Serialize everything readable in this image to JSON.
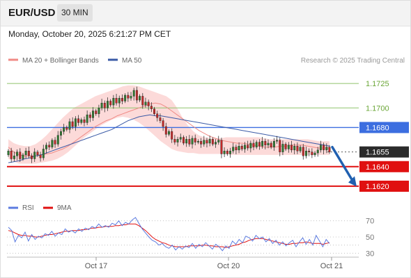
{
  "header": {
    "symbol": "EUR/USD",
    "timeframe": "30 MIN",
    "datetime": "Monday, October 20, 2025 6:21:27 PM CET",
    "credit": "Research © 2025 Trading Central"
  },
  "colors": {
    "bollinger_fill": "#fbd4d2",
    "ma20": "#f08a85",
    "ma50": "#3a5aa6",
    "resistance": "#8fc36b",
    "pivot": "#3c6ee0",
    "support": "#e01010",
    "bull_candle": "#2e7d32",
    "bear_candle": "#c62828",
    "arrow": "#2060b0",
    "rsi": "#5b7be0",
    "rsi_ma": "#e01010"
  },
  "chart_data": [
    {
      "type": "candlestick",
      "title": "EUR/USD 30 MIN",
      "legend": [
        {
          "name": "MA 20 + Bollinger Bands",
          "color": "#f08a85"
        },
        {
          "name": "MA 50",
          "color": "#3a5aa6"
        }
      ],
      "legend_position": "top-left",
      "ylim": [
        1.161,
        1.174
      ],
      "x_ticks": [
        "Oct 17",
        "Oct 20",
        "Oct 21"
      ],
      "levels": [
        {
          "value": 1.1725,
          "label": "1.1725",
          "kind": "resistance"
        },
        {
          "value": 1.17,
          "label": "1.1700",
          "kind": "resistance"
        },
        {
          "value": 1.168,
          "label": "1.1680",
          "kind": "pivot"
        },
        {
          "value": 1.1655,
          "label": "1.1655",
          "kind": "last"
        },
        {
          "value": 1.164,
          "label": "1.1640",
          "kind": "support"
        },
        {
          "value": 1.162,
          "label": "1.1620",
          "kind": "support"
        }
      ],
      "close": [
        1.1656,
        1.1648,
        1.1651,
        1.1655,
        1.1648,
        1.1652,
        1.1656,
        1.1651,
        1.1648,
        1.1655,
        1.1652,
        1.1649,
        1.1658,
        1.1662,
        1.166,
        1.1667,
        1.1663,
        1.1672,
        1.1676,
        1.168,
        1.1678,
        1.1686,
        1.1681,
        1.1689,
        1.1685,
        1.1688,
        1.1685,
        1.1693,
        1.169,
        1.1697,
        1.1694,
        1.17,
        1.1705,
        1.17,
        1.1707,
        1.1703,
        1.171,
        1.1705,
        1.171,
        1.1707,
        1.1713,
        1.171,
        1.1712,
        1.1718,
        1.1708,
        1.1712,
        1.1703,
        1.1706,
        1.1702,
        1.1699,
        1.1694,
        1.169,
        1.1687,
        1.1681,
        1.1673,
        1.1676,
        1.1668,
        1.1665,
        1.1668,
        1.167,
        1.1664,
        1.1668,
        1.1663,
        1.1669,
        1.1665,
        1.1666,
        1.1663,
        1.1667,
        1.1664,
        1.1668,
        1.1663,
        1.1665,
        1.1667,
        1.1653,
        1.1656,
        1.1653,
        1.1656,
        1.166,
        1.1657,
        1.1661,
        1.1658,
        1.1662,
        1.1659,
        1.1664,
        1.166,
        1.1665,
        1.1661,
        1.1666,
        1.1662,
        1.1664,
        1.166,
        1.1666,
        1.1667,
        1.1655,
        1.1663,
        1.1658,
        1.1662,
        1.1657,
        1.1661,
        1.1656,
        1.166,
        1.1651,
        1.1656,
        1.1655,
        1.1652,
        1.1654,
        1.1657,
        1.1662,
        1.1657,
        1.166,
        1.1655
      ],
      "ma20": [
        1.166,
        1.1655,
        1.1652,
        1.1651,
        1.1651,
        1.1651,
        1.1652,
        1.1653,
        1.1654,
        1.1656,
        1.1658,
        1.1661,
        1.1665,
        1.1669,
        1.1673,
        1.1677,
        1.1681,
        1.1684,
        1.1687,
        1.1689,
        1.1692,
        1.1694,
        1.1696,
        1.1698,
        1.17,
        1.1702,
        1.1704,
        1.1705,
        1.1704,
        1.1701,
        1.1697,
        1.1693,
        1.1689,
        1.1685,
        1.1681,
        1.1677,
        1.1674,
        1.1671,
        1.1669,
        1.1667,
        1.1666,
        1.1665,
        1.1664,
        1.1664,
        1.1663,
        1.1662,
        1.1661,
        1.166,
        1.166,
        1.166,
        1.1661,
        1.1661,
        1.1662,
        1.1662,
        1.1662,
        1.1661,
        1.166,
        1.1659,
        1.1659,
        1.1659
      ],
      "bb_upper": [
        1.1668,
        1.1664,
        1.1662,
        1.1661,
        1.1661,
        1.1663,
        1.1667,
        1.1672,
        1.1678,
        1.1684,
        1.169,
        1.1695,
        1.17,
        1.1703,
        1.1706,
        1.1709,
        1.1712,
        1.1714,
        1.1716,
        1.1718,
        1.172,
        1.1722,
        1.1723,
        1.1723,
        1.1722,
        1.172,
        1.1718,
        1.1716,
        1.1714,
        1.1712,
        1.1708,
        1.17,
        1.169,
        1.1682,
        1.1676,
        1.1672,
        1.167,
        1.1669,
        1.1669,
        1.1669,
        1.167,
        1.167,
        1.167,
        1.167,
        1.167,
        1.167,
        1.167,
        1.1669,
        1.1668,
        1.1668,
        1.1668,
        1.1668,
        1.1668,
        1.1668,
        1.1668,
        1.1668,
        1.1667,
        1.1666,
        1.1666,
        1.1666
      ],
      "bb_lower": [
        1.1648,
        1.1645,
        1.1643,
        1.1643,
        1.1643,
        1.1643,
        1.1644,
        1.1645,
        1.1646,
        1.1648,
        1.1651,
        1.1655,
        1.166,
        1.1665,
        1.167,
        1.1674,
        1.1678,
        1.1682,
        1.1685,
        1.1688,
        1.169,
        1.1691,
        1.169,
        1.1688,
        1.1685,
        1.1681,
        1.1676,
        1.1671,
        1.1666,
        1.1662,
        1.1658,
        1.1656,
        1.1655,
        1.1654,
        1.1654,
        1.1653,
        1.1653,
        1.1653,
        1.1653,
        1.1653,
        1.1653,
        1.1652,
        1.1652,
        1.1652,
        1.1652,
        1.1652,
        1.1652,
        1.1652,
        1.1652,
        1.1652,
        1.1652,
        1.1652,
        1.1652,
        1.1652,
        1.1652,
        1.1652,
        1.1652,
        1.1652,
        1.1652,
        1.1652
      ],
      "ma50": [
        1.1644,
        1.1645,
        1.1646,
        1.1648,
        1.1649,
        1.1651,
        1.1652,
        1.1654,
        1.1656,
        1.1658,
        1.166,
        1.1662,
        1.1664,
        1.1666,
        1.1668,
        1.167,
        1.1672,
        1.1674,
        1.1676,
        1.1678,
        1.1681,
        1.1684,
        1.1687,
        1.1689,
        1.1691,
        1.1692,
        1.1693,
        1.1692,
        1.1692,
        1.1691,
        1.169,
        1.1689,
        1.1688,
        1.1687,
        1.1686,
        1.1685,
        1.1684,
        1.1683,
        1.1682,
        1.1681,
        1.168,
        1.1679,
        1.1678,
        1.1677,
        1.1676,
        1.1675,
        1.1674,
        1.1673,
        1.1672,
        1.1671,
        1.167,
        1.1669,
        1.1668,
        1.1667,
        1.1666,
        1.1665,
        1.1664,
        1.1663,
        1.1662,
        1.1661
      ],
      "arrow": {
        "from": 1.166,
        "to": 1.1621
      },
      "grid": false
    },
    {
      "type": "line",
      "title": "RSI",
      "legend": [
        {
          "name": "RSI",
          "color": "#5b7be0"
        },
        {
          "name": "9MA",
          "color": "#e01010"
        }
      ],
      "legend_position": "top-left",
      "ylim": [
        20,
        80
      ],
      "y_ticks": [
        70,
        50,
        30
      ],
      "rsi": [
        62,
        58,
        44,
        52,
        49,
        56,
        45,
        53,
        47,
        51,
        49,
        54,
        52,
        57,
        51,
        55,
        53,
        60,
        56,
        58,
        55,
        60,
        57,
        61,
        59,
        63,
        61,
        66,
        62,
        64,
        62,
        67,
        65,
        70,
        64,
        68,
        66,
        71,
        74,
        67,
        60,
        55,
        50,
        46,
        44,
        40,
        42,
        38,
        36,
        40,
        34,
        38,
        35,
        39,
        37,
        42,
        36,
        41,
        38,
        43,
        39,
        35,
        41,
        38,
        33,
        39,
        36,
        45,
        41,
        47,
        43,
        51,
        49,
        45,
        52,
        48,
        50,
        44,
        48,
        42,
        46,
        40,
        44,
        39,
        43,
        46,
        38,
        44,
        49,
        41,
        47,
        40,
        52,
        45,
        38,
        47,
        42
      ],
      "rsi_ma": [
        58,
        57,
        55,
        53,
        52,
        52,
        51,
        51,
        50,
        50,
        51,
        52,
        53,
        53,
        54,
        55,
        56,
        57,
        57,
        58,
        58,
        58,
        59,
        59,
        60,
        61,
        61,
        62,
        62,
        63,
        63,
        63,
        64,
        64,
        65,
        65,
        66,
        66,
        66,
        64,
        61,
        58,
        54,
        50,
        47,
        45,
        43,
        42,
        40,
        39,
        38,
        38,
        38,
        38,
        39,
        39,
        39,
        39,
        40,
        40,
        39,
        39,
        38,
        38,
        38,
        37,
        38,
        39,
        40,
        41,
        43,
        44,
        46,
        47,
        48,
        48,
        48,
        47,
        46,
        45,
        44,
        43,
        42,
        41,
        41,
        42,
        42,
        43,
        43,
        44,
        43,
        42,
        42,
        42,
        41,
        42,
        43
      ]
    }
  ]
}
